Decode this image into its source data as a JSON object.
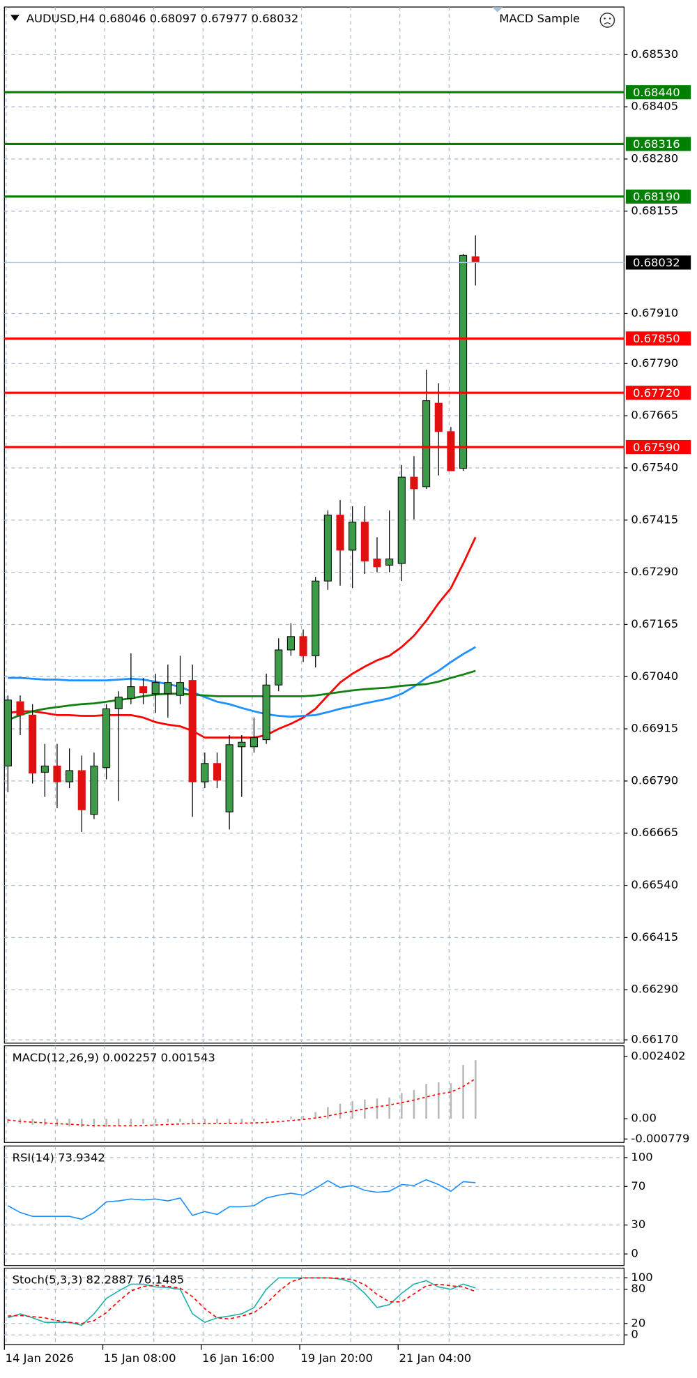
{
  "chart_data": [
    {
      "type": "candlestick",
      "title": "AUDUSD,H4  0.68046 0.68097 0.67977 0.68032",
      "expert": "MACD Sample",
      "categories": [
        "14 Jan 2026",
        null,
        null,
        null,
        null,
        null,
        null,
        null,
        "15 Jan 08:00",
        null,
        null,
        null,
        null,
        null,
        null,
        null,
        "16 Jan 16:00",
        null,
        null,
        null,
        null,
        null,
        null,
        null,
        "19 Jan 20:00",
        null,
        null,
        null,
        null,
        null,
        null,
        null,
        "21 Jan 04:00",
        null,
        null,
        null,
        null,
        null,
        null
      ],
      "open": [
        0.66826,
        0.6698,
        0.66948,
        0.66811,
        0.66826,
        0.66788,
        0.66815,
        0.6671,
        0.66822,
        0.66963,
        0.66988,
        0.67016,
        0.66999,
        0.66999,
        0.66995,
        0.67031,
        0.66788,
        0.66832,
        0.66716,
        0.66872,
        0.66872,
        0.66889,
        0.6702,
        0.67104,
        0.67136,
        0.6709,
        0.67269,
        0.67427,
        0.67343,
        0.6741,
        0.67322,
        0.67307,
        0.67311,
        0.67518,
        0.67495,
        0.67695,
        0.67627,
        0.67539,
        0.68046
      ],
      "high": [
        0.66995,
        0.66995,
        0.66974,
        0.66879,
        0.66879,
        0.66868,
        0.66851,
        0.66858,
        0.66974,
        0.67005,
        0.67096,
        0.67037,
        0.67047,
        0.67069,
        0.6709,
        0.67069,
        0.66858,
        0.66858,
        0.669,
        0.669,
        0.66942,
        0.67047,
        0.67132,
        0.67168,
        0.67153,
        0.67279,
        0.67438,
        0.67463,
        0.67448,
        0.67448,
        0.67374,
        0.67438,
        0.67547,
        0.67568,
        0.67775,
        0.67743,
        0.67638,
        0.68053,
        0.68097
      ],
      "low": [
        0.66763,
        0.669,
        0.66784,
        0.66752,
        0.66725,
        0.66773,
        0.66668,
        0.66699,
        0.66794,
        0.66742,
        0.66974,
        0.66974,
        0.66953,
        0.66942,
        0.66974,
        0.66704,
        0.66773,
        0.66773,
        0.66674,
        0.66752,
        0.66858,
        0.66879,
        0.67005,
        0.6709,
        0.67075,
        0.67062,
        0.67248,
        0.67258,
        0.67252,
        0.67286,
        0.6729,
        0.6729,
        0.67269,
        0.67417,
        0.6749,
        0.67522,
        0.67533,
        0.67533,
        0.67977
      ],
      "close": [
        0.66984,
        0.66948,
        0.66809,
        0.66826,
        0.66788,
        0.66815,
        0.66721,
        0.66826,
        0.66963,
        0.66991,
        0.67016,
        0.67001,
        0.67026,
        0.67026,
        0.67026,
        0.66788,
        0.66832,
        0.66792,
        0.66877,
        0.66883,
        0.66894,
        0.6702,
        0.67104,
        0.67136,
        0.6709,
        0.67269,
        0.67427,
        0.67343,
        0.6741,
        0.67317,
        0.67303,
        0.67322,
        0.67518,
        0.6749,
        0.67701,
        0.67627,
        0.67533,
        0.68049,
        0.68032
      ],
      "up_color": "#3c9a48",
      "down_color": "#e01010",
      "overlays": [
        {
          "color": "#ff0000",
          "values": [
            0.66953,
            0.66957,
            0.66957,
            0.66953,
            0.66948,
            0.66948,
            0.66946,
            0.66946,
            0.66948,
            0.66948,
            0.66948,
            0.66942,
            0.66931,
            0.66925,
            0.66921,
            0.6691,
            0.66894,
            0.66894,
            0.66894,
            0.66894,
            0.66894,
            0.669,
            0.66915,
            0.66927,
            0.66942,
            0.66963,
            0.66995,
            0.67026,
            0.67047,
            0.67064,
            0.67079,
            0.6709,
            0.67111,
            0.67138,
            0.67174,
            0.67216,
            0.67252,
            0.67311,
            0.67374
          ]
        },
        {
          "color": "#1e90ff",
          "values": [
            0.67037,
            0.67037,
            0.67035,
            0.67033,
            0.67033,
            0.67031,
            0.67031,
            0.67031,
            0.67031,
            0.67033,
            0.67035,
            0.67033,
            0.67028,
            0.67022,
            0.67016,
            0.67003,
            0.66991,
            0.6698,
            0.66974,
            0.66965,
            0.66957,
            0.6695,
            0.66946,
            0.66944,
            0.66946,
            0.66948,
            0.66955,
            0.66963,
            0.66969,
            0.66976,
            0.66982,
            0.66988,
            0.66999,
            0.67016,
            0.67037,
            0.67054,
            0.67075,
            0.67094,
            0.67111
          ]
        },
        {
          "color": "#108010",
          "values": [
            0.66936,
            0.66948,
            0.66957,
            0.66963,
            0.66967,
            0.66971,
            0.66974,
            0.66976,
            0.6698,
            0.66984,
            0.66988,
            0.66993,
            0.66997,
            0.66999,
            0.66999,
            0.66997,
            0.66995,
            0.66993,
            0.66993,
            0.66993,
            0.66993,
            0.66993,
            0.66993,
            0.66993,
            0.66993,
            0.66995,
            0.66999,
            0.67003,
            0.67007,
            0.6701,
            0.67012,
            0.67014,
            0.67018,
            0.6702,
            0.67022,
            0.67028,
            0.67037,
            0.67045,
            0.67054
          ]
        }
      ],
      "levels": [
        {
          "value": 0.6844,
          "label": "0.68440",
          "line_color": "#008000",
          "box_color": "#008000"
        },
        {
          "value": 0.68316,
          "label": "0.68316",
          "line_color": "#008000",
          "box_color": "#008000"
        },
        {
          "value": 0.6819,
          "label": "0.68190",
          "line_color": "#008000",
          "box_color": "#008000"
        },
        {
          "value": 0.68032,
          "label": "0.68032",
          "line_color": "#b0c8e0",
          "box_color": "#000000"
        },
        {
          "value": 0.6785,
          "label": "0.67850",
          "line_color": "#ff0000",
          "box_color": "#ff0000"
        },
        {
          "value": 0.6772,
          "label": "0.67720",
          "line_color": "#ff0000",
          "box_color": "#ff0000"
        },
        {
          "value": 0.6759,
          "label": "0.67590",
          "line_color": "#ff0000",
          "box_color": "#ff0000"
        }
      ],
      "ylim": [
        0.66162,
        0.68644
      ],
      "yticks": [
        {
          "value": 0.6853,
          "label": "0.68530"
        },
        {
          "value": 0.68405,
          "label": "0.68405"
        },
        {
          "value": 0.6828,
          "label": "0.68280"
        },
        {
          "value": 0.68155,
          "label": "0.68155"
        },
        {
          "value": 0.6791,
          "label": "0.67910"
        },
        {
          "value": 0.6779,
          "label": "0.67790"
        },
        {
          "value": 0.67665,
          "label": "0.67665"
        },
        {
          "value": 0.6754,
          "label": "0.67540"
        },
        {
          "value": 0.67415,
          "label": "0.67415"
        },
        {
          "value": 0.6729,
          "label": "0.67290"
        },
        {
          "value": 0.67165,
          "label": "0.67165"
        },
        {
          "value": 0.6704,
          "label": "0.67040"
        },
        {
          "value": 0.66915,
          "label": "0.66915"
        },
        {
          "value": 0.6679,
          "label": "0.66790"
        },
        {
          "value": 0.66665,
          "label": "0.66665"
        },
        {
          "value": 0.6654,
          "label": "0.66540"
        },
        {
          "value": 0.66415,
          "label": "0.66415"
        },
        {
          "value": 0.6629,
          "label": "0.66290"
        },
        {
          "value": 0.6617,
          "label": "0.66170"
        }
      ],
      "grid": true
    },
    {
      "type": "macd",
      "title": "MACD(12,26,9) 0.002257 0.001543",
      "series": [
        {
          "style": "histogram",
          "color": "#b8b8b8",
          "values": [
            -0.00017,
            -0.0002,
            -0.00023,
            -0.00026,
            -0.00029,
            -0.0003,
            -0.00032,
            -0.00033,
            -0.00031,
            -0.00028,
            -0.00024,
            -0.0002,
            -0.00017,
            -0.00014,
            -0.00012,
            -0.00016,
            -0.00019,
            -0.00018,
            -0.00017,
            -0.00014,
            -0.0001,
            -6e-05,
            2e-05,
            8e-05,
            0.00011,
            0.00026,
            0.00045,
            0.00058,
            0.00068,
            0.00074,
            0.00078,
            0.00082,
            0.00099,
            0.00111,
            0.00134,
            0.0014,
            0.00137,
            0.00207,
            0.002257
          ]
        },
        {
          "style": "dotted",
          "color": "#ff0000",
          "values": [
            -5e-05,
            -0.0001,
            -0.00013,
            -0.00016,
            -0.00019,
            -0.00021,
            -0.00024,
            -0.00026,
            -0.00027,
            -0.00027,
            -0.00027,
            -0.00026,
            -0.00024,
            -0.00022,
            -0.0002,
            -0.00019,
            -0.00019,
            -0.00019,
            -0.00018,
            -0.00017,
            -0.00016,
            -0.00014,
            -0.00011,
            -7e-05,
            -3e-05,
            3e-05,
            0.00011,
            0.0002,
            0.00029,
            0.00038,
            0.00046,
            0.00053,
            0.00062,
            0.00072,
            0.00084,
            0.00095,
            0.00103,
            0.00124,
            0.001543
          ]
        }
      ],
      "ylim": [
        -0.000913,
        0.002808
      ],
      "yticks": [
        0.002402,
        {
          "value": 0,
          "label": "0.00"
        },
        -0.000779
      ],
      "grid": false
    },
    {
      "type": "line",
      "title": "RSI(14) 73.9342",
      "series": [
        {
          "style": "solid",
          "color": "#1e90ff",
          "values": [
            50,
            43,
            39,
            39,
            39,
            39,
            36,
            43,
            54,
            55,
            57,
            56,
            57,
            55,
            58,
            40,
            44,
            41,
            49,
            49,
            50,
            58,
            61,
            63,
            61,
            68,
            76,
            69,
            71,
            66,
            64,
            65,
            72,
            71,
            77,
            72,
            65,
            75,
            73.9342
          ]
        }
      ],
      "ylim": [
        -12,
        112
      ],
      "yticks": [
        0,
        30,
        70,
        100
      ],
      "grid": true
    },
    {
      "type": "line",
      "title": "Stoch(5,3,3) 82.2887 76.1485",
      "series": [
        {
          "style": "solid",
          "color": "#20b2aa",
          "values": [
            30,
            37,
            30,
            22,
            22,
            22,
            17,
            37,
            64,
            77,
            89,
            89,
            84,
            83,
            80,
            37,
            22,
            30,
            33,
            37,
            48,
            80,
            100,
            100,
            100,
            100,
            100,
            98,
            92,
            73,
            48,
            53,
            73,
            89,
            95,
            84,
            80,
            89,
            82.2887
          ]
        },
        {
          "style": "dashed",
          "color": "#ff0000",
          "values": [
            33,
            34,
            32,
            30,
            25,
            22,
            20,
            25,
            39,
            59,
            77,
            85,
            87,
            85,
            82,
            67,
            46,
            30,
            28,
            33,
            39,
            55,
            76,
            93,
            100,
            100,
            100,
            99,
            97,
            88,
            71,
            58,
            58,
            72,
            86,
            89,
            86,
            84,
            76.1485
          ]
        }
      ],
      "ylim": [
        -17,
        117
      ],
      "yticks": [
        0,
        20,
        80,
        100
      ],
      "grid": true
    }
  ]
}
